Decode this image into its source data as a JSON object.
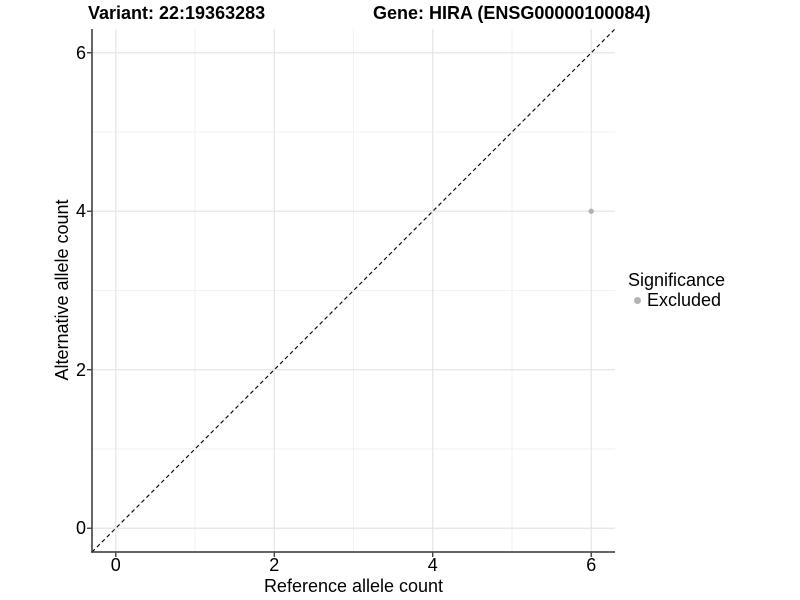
{
  "header": {
    "variant_title": "Variant: 22:19363283",
    "gene_title": "Gene: HIRA (ENSG00000100084)"
  },
  "axes": {
    "x": {
      "label": "Reference allele count"
    },
    "y": {
      "label": "Alternative allele count"
    }
  },
  "legend": {
    "title": "Significance",
    "items": [
      {
        "label": "Excluded",
        "color": "#b3b3b3"
      }
    ]
  },
  "colors": {
    "background": "#ffffff",
    "text": "#000000",
    "axis_line": "#333333",
    "grid_major": "#e5e5e5",
    "grid_minor": "#f2f2f2",
    "identity_line": "#111111",
    "point": "#b3b3b3"
  },
  "chart_data": {
    "type": "scatter",
    "title": "Variant: 22:19363283  |  Gene: HIRA (ENSG00000100084)",
    "xlabel": "Reference allele count",
    "ylabel": "Alternative allele count",
    "xlim": [
      -0.3,
      6.3
    ],
    "ylim": [
      -0.3,
      6.3
    ],
    "x_ticks": [
      0,
      2,
      4,
      6
    ],
    "y_ticks": [
      0,
      2,
      4,
      6
    ],
    "x_minor_ticks": [
      1,
      3,
      5
    ],
    "y_minor_ticks": [
      1,
      3,
      5
    ],
    "grid": true,
    "legend_position": "right",
    "series": [
      {
        "name": "Excluded",
        "color": "#b3b3b3",
        "points": [
          {
            "x": 6,
            "y": 4
          }
        ]
      }
    ],
    "reference_line": {
      "type": "identity",
      "style": "dashed",
      "from": [
        -0.3,
        -0.3
      ],
      "to": [
        6.3,
        6.3
      ]
    }
  }
}
